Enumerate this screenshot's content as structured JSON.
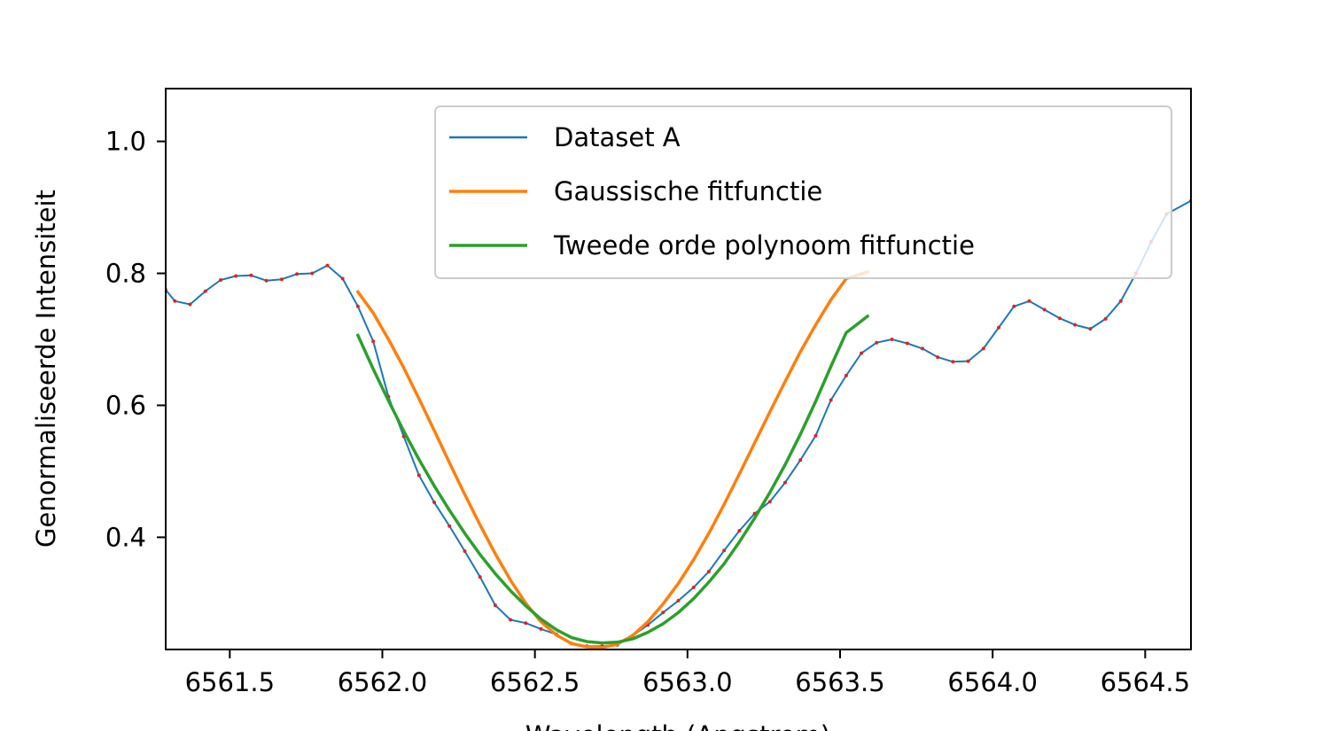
{
  "chart_data": {
    "type": "line",
    "xlabel": "Wavelength (Angstrom)",
    "ylabel": "Genormaliseerde Intensiteit",
    "xlim": [
      6561.29,
      6564.65
    ],
    "ylim": [
      0.23,
      1.08
    ],
    "x_ticks": [
      "6561.5",
      "6562.0",
      "6562.5",
      "6563.0",
      "6563.5",
      "6564.0",
      "6564.5"
    ],
    "x_tick_values": [
      6561.5,
      6562.0,
      6562.5,
      6563.0,
      6563.5,
      6564.0,
      6564.5
    ],
    "y_ticks": [
      "0.4",
      "0.6",
      "0.8",
      "1.0"
    ],
    "y_tick_values": [
      0.4,
      0.6,
      0.8,
      1.0
    ],
    "grid": false,
    "legend_position": "top-right",
    "series": [
      {
        "name": "Dataset A",
        "color": "#1f77b4",
        "marker_color": "#d62728",
        "x": [
          6561.29,
          6561.32,
          6561.37,
          6561.42,
          6561.47,
          6561.52,
          6561.57,
          6561.62,
          6561.67,
          6561.72,
          6561.77,
          6561.82,
          6561.87,
          6561.92,
          6561.97,
          6562.02,
          6562.07,
          6562.12,
          6562.17,
          6562.22,
          6562.27,
          6562.32,
          6562.37,
          6562.42,
          6562.47,
          6562.52,
          6562.57,
          6562.62,
          6562.67,
          6562.72,
          6562.77,
          6562.82,
          6562.87,
          6562.92,
          6562.97,
          6563.02,
          6563.07,
          6563.12,
          6563.17,
          6563.22,
          6563.27,
          6563.32,
          6563.37,
          6563.42,
          6563.47,
          6563.52,
          6563.57,
          6563.62,
          6563.67,
          6563.72,
          6563.77,
          6563.82,
          6563.87,
          6563.92,
          6563.97,
          6564.02,
          6564.07,
          6564.12,
          6564.17,
          6564.22,
          6564.27,
          6564.32,
          6564.37,
          6564.42,
          6564.47,
          6564.52,
          6564.57,
          6564.65
        ],
        "y": [
          0.775,
          0.758,
          0.753,
          0.773,
          0.79,
          0.796,
          0.797,
          0.789,
          0.791,
          0.799,
          0.8,
          0.812,
          0.792,
          0.75,
          0.697,
          0.613,
          0.553,
          0.494,
          0.453,
          0.417,
          0.379,
          0.34,
          0.297,
          0.275,
          0.27,
          0.261,
          0.253,
          0.239,
          0.235,
          0.235,
          0.237,
          0.251,
          0.267,
          0.286,
          0.304,
          0.324,
          0.348,
          0.38,
          0.41,
          0.436,
          0.454,
          0.483,
          0.517,
          0.554,
          0.608,
          0.645,
          0.679,
          0.695,
          0.7,
          0.694,
          0.686,
          0.673,
          0.666,
          0.667,
          0.686,
          0.718,
          0.75,
          0.758,
          0.745,
          0.732,
          0.722,
          0.716,
          0.731,
          0.758,
          0.8,
          0.848,
          0.89,
          0.91
        ]
      },
      {
        "name": "Gaussische fitfunctie",
        "color": "#ff7f0e",
        "x": [
          6561.92,
          6561.97,
          6562.02,
          6562.07,
          6562.12,
          6562.17,
          6562.22,
          6562.27,
          6562.32,
          6562.37,
          6562.42,
          6562.47,
          6562.52,
          6562.57,
          6562.62,
          6562.67,
          6562.72,
          6562.77,
          6562.82,
          6562.87,
          6562.92,
          6562.97,
          6563.02,
          6563.07,
          6563.12,
          6563.17,
          6563.22,
          6563.27,
          6563.32,
          6563.37,
          6563.42,
          6563.47,
          6563.52,
          6563.59
        ],
        "y": [
          0.772,
          0.74,
          0.7,
          0.657,
          0.61,
          0.562,
          0.513,
          0.465,
          0.419,
          0.375,
          0.335,
          0.3,
          0.272,
          0.252,
          0.239,
          0.234,
          0.233,
          0.238,
          0.251,
          0.272,
          0.299,
          0.33,
          0.366,
          0.406,
          0.45,
          0.496,
          0.543,
          0.59,
          0.636,
          0.681,
          0.722,
          0.76,
          0.792,
          0.802
        ]
      },
      {
        "name": "Tweede orde polynoom fitfunctie",
        "color": "#2ca02c",
        "x": [
          6561.92,
          6561.97,
          6562.02,
          6562.07,
          6562.12,
          6562.17,
          6562.22,
          6562.27,
          6562.32,
          6562.37,
          6562.42,
          6562.47,
          6562.52,
          6562.57,
          6562.62,
          6562.67,
          6562.72,
          6562.77,
          6562.82,
          6562.87,
          6562.92,
          6562.97,
          6563.02,
          6563.07,
          6563.12,
          6563.17,
          6563.22,
          6563.27,
          6563.32,
          6563.37,
          6563.42,
          6563.47,
          6563.52,
          6563.59
        ],
        "y": [
          0.706,
          0.655,
          0.607,
          0.561,
          0.518,
          0.478,
          0.441,
          0.406,
          0.374,
          0.345,
          0.319,
          0.296,
          0.276,
          0.26,
          0.248,
          0.242,
          0.24,
          0.241,
          0.246,
          0.256,
          0.269,
          0.286,
          0.307,
          0.332,
          0.36,
          0.393,
          0.429,
          0.468,
          0.51,
          0.556,
          0.606,
          0.659,
          0.71,
          0.735
        ]
      }
    ]
  }
}
